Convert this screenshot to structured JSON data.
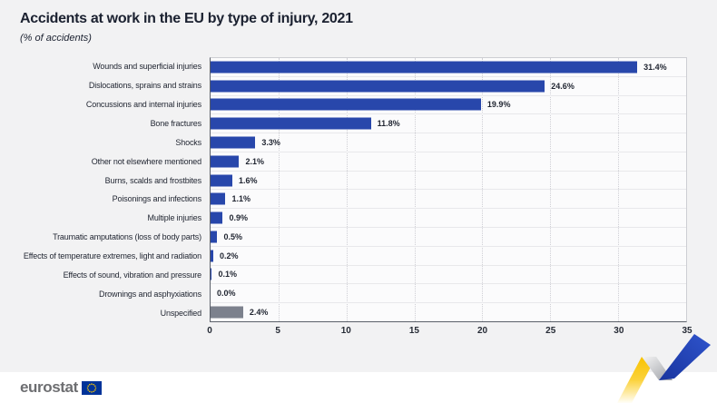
{
  "header": {
    "title": "Accidents at work in the EU by type of injury, 2021",
    "subtitle": "(% of accidents)"
  },
  "chart_data": {
    "type": "bar",
    "orientation": "horizontal",
    "title": "Accidents at work in the EU by type of injury, 2021",
    "subtitle": "(% of accidents)",
    "unit": "% of accidents",
    "categories": [
      "Wounds and superficial injuries",
      "Dislocations, sprains and strains",
      "Concussions and internal injuries",
      "Bone fractures",
      "Shocks",
      "Other not elsewhere mentioned",
      "Burns, scalds and frostbites",
      "Poisonings and infections",
      "Multiple injuries",
      "Traumatic amputations (loss of body parts)",
      "Effects of temperature extremes, light and radiation",
      "Effects of sound, vibration and pressure",
      "Drownings and asphyxiations",
      "Unspecified"
    ],
    "values": [
      31.4,
      24.6,
      19.9,
      11.8,
      3.3,
      2.1,
      1.6,
      1.1,
      0.9,
      0.5,
      0.2,
      0.1,
      0.0,
      2.4
    ],
    "value_labels": [
      "31.4%",
      "24.6%",
      "19.9%",
      "11.8%",
      "3.3%",
      "2.1%",
      "1.6%",
      "1.1%",
      "0.9%",
      "0.5%",
      "0.2%",
      "0.1%",
      "0.0%",
      "2.4%"
    ],
    "bar_colors": [
      "#2847AB",
      "#2847AB",
      "#2847AB",
      "#2847AB",
      "#2847AB",
      "#2847AB",
      "#2847AB",
      "#2847AB",
      "#2847AB",
      "#2847AB",
      "#2847AB",
      "#2847AB",
      "#2847AB",
      "#7C818D"
    ],
    "xlim": [
      0,
      35
    ],
    "xticks": [
      0,
      5,
      10,
      15,
      20,
      25,
      30,
      35
    ],
    "grid": "vertical-dotted",
    "legend": "none"
  },
  "footer": {
    "logo_text": "eurostat"
  },
  "colors": {
    "bar_blue": "#2847AB",
    "bar_gray": "#7C818D",
    "page_background": "#f2f2f3",
    "plot_background": "#fbfbfc",
    "eu_flag_blue": "#003399",
    "eu_star_yellow": "#FFCC00",
    "ribbon_yellow": "#F8C200",
    "ribbon_blue": "#2348BB"
  }
}
